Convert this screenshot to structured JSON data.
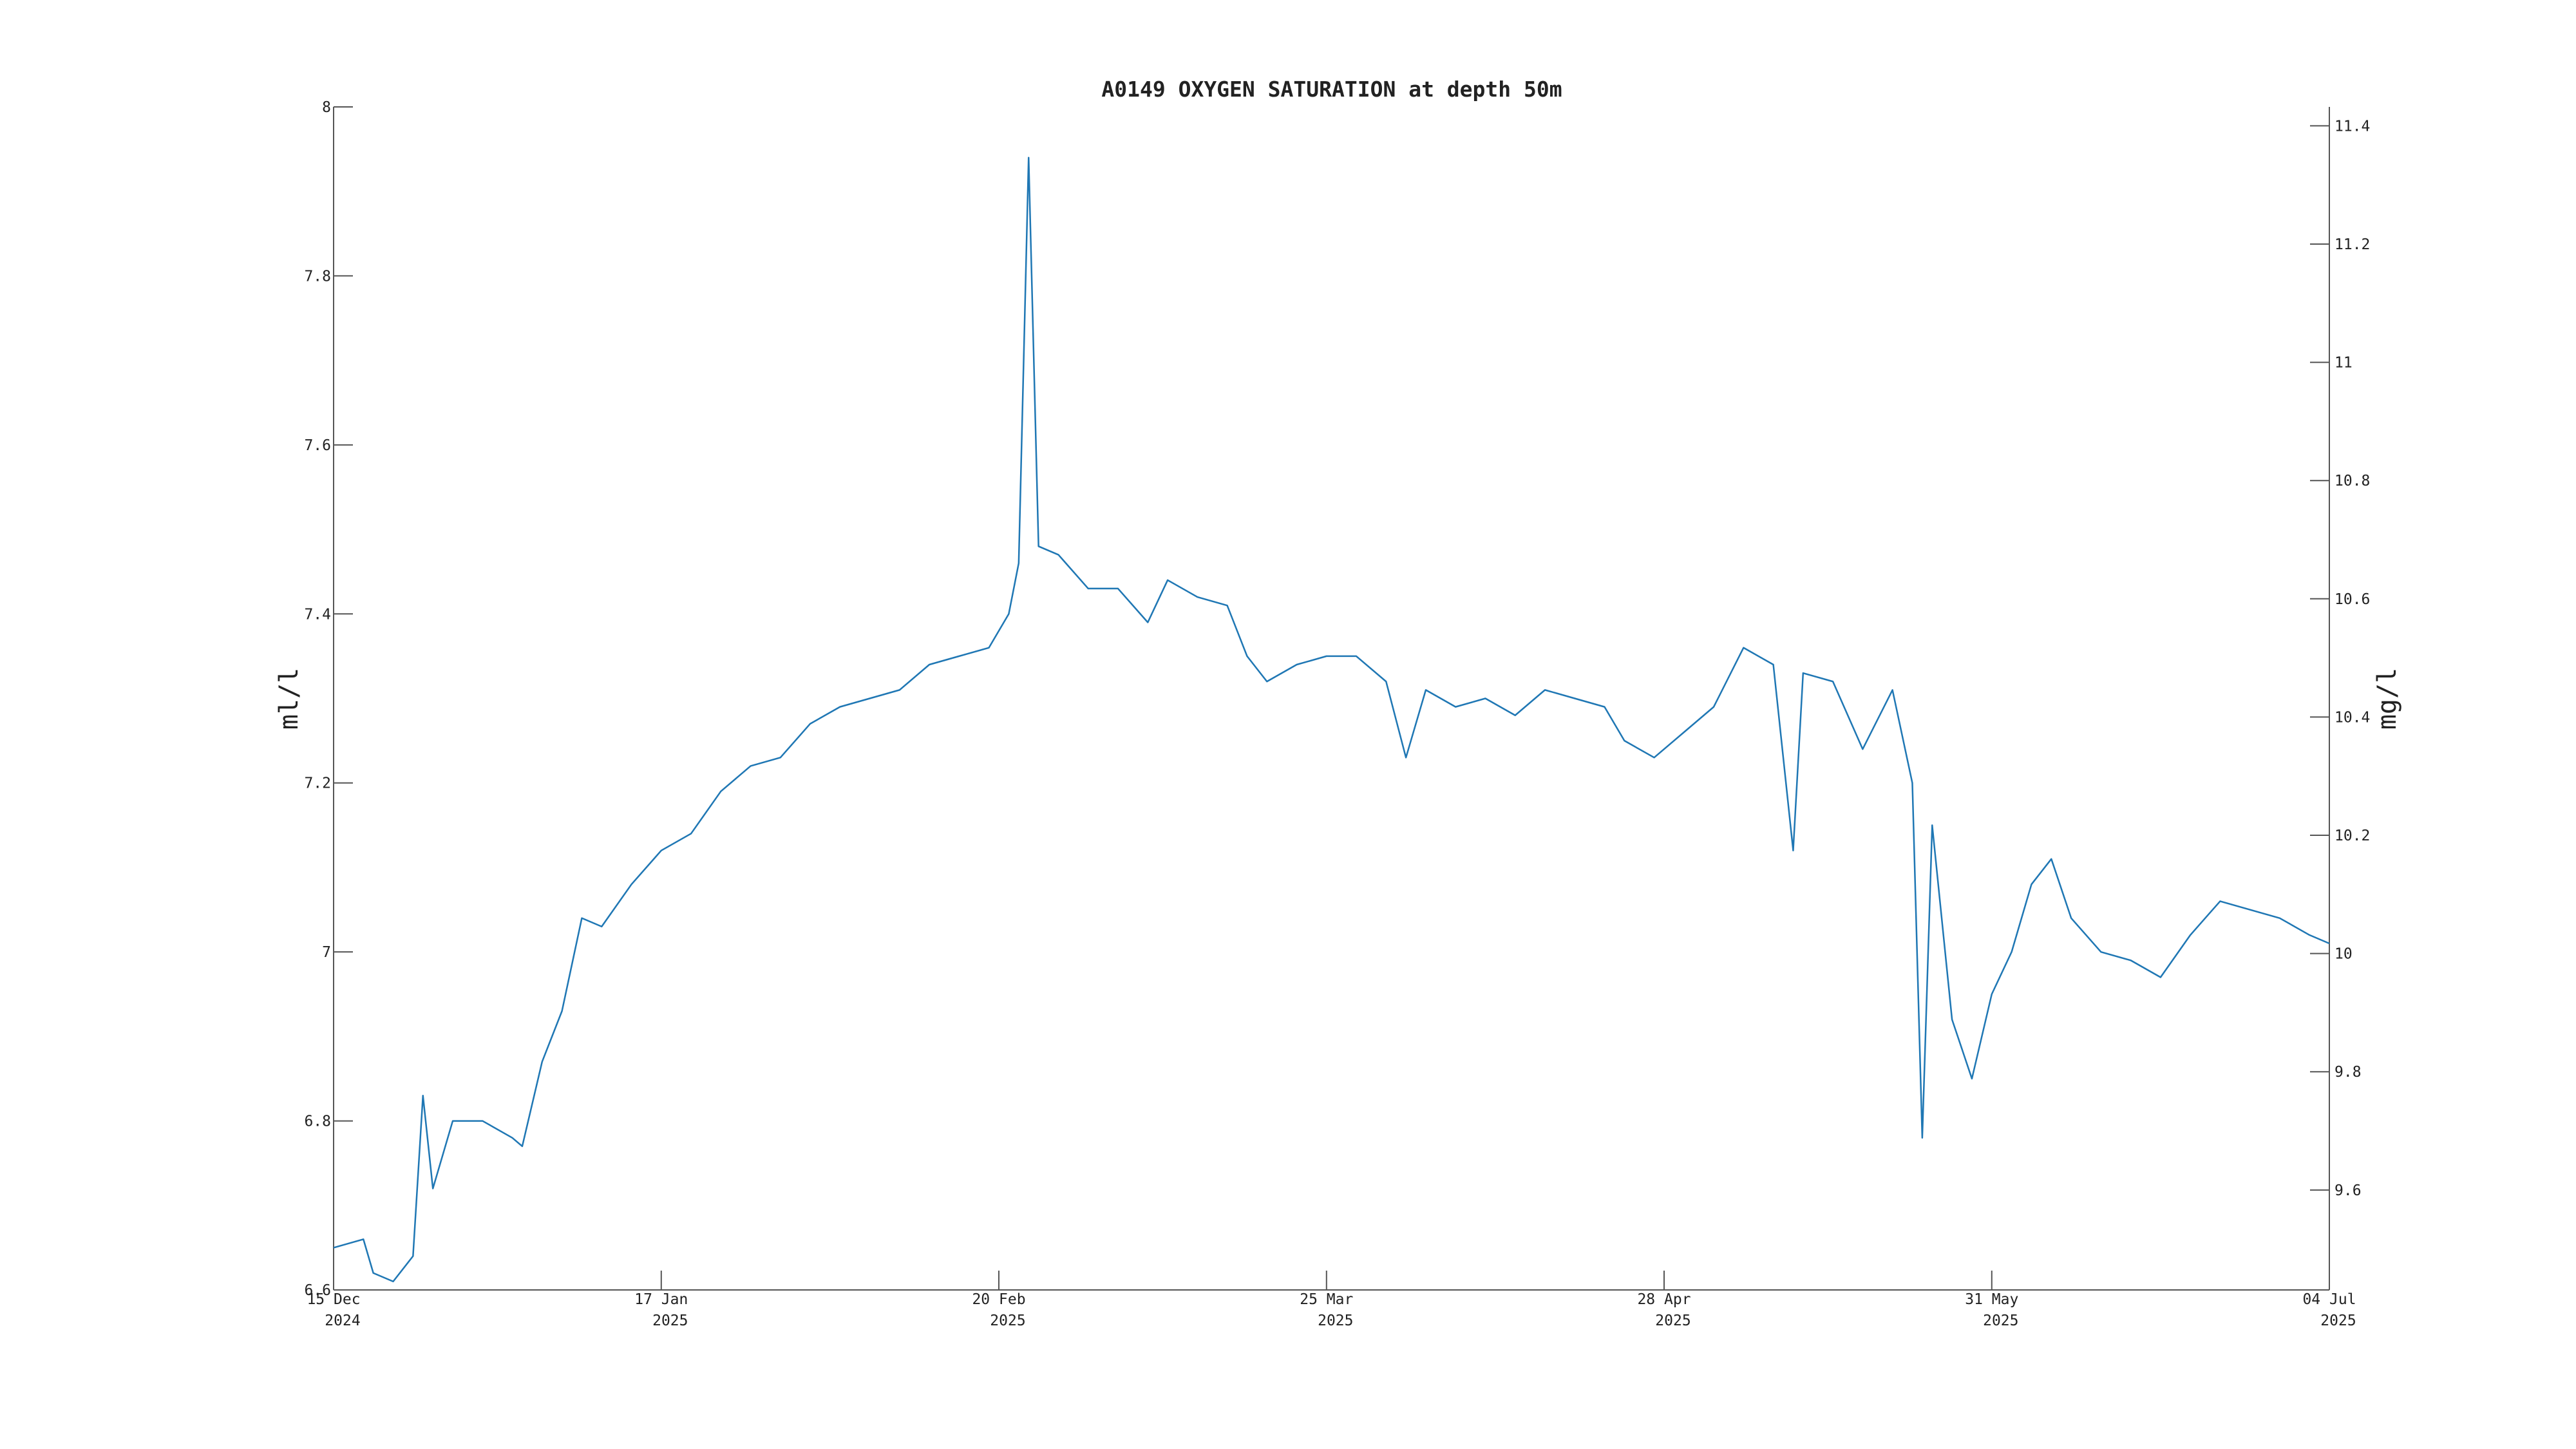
{
  "chart_data": {
    "type": "line",
    "title": "A0149 OXYGEN SATURATION at depth 50m",
    "y_label": "ml/l",
    "y2_label": "mg/l",
    "xlim": [
      "2024-12-15",
      "2025-07-04"
    ],
    "xticks": [
      {
        "value": "2024-12-15",
        "label": [
          "15 Dec",
          "2024"
        ]
      },
      {
        "value": "2025-01-17",
        "label": [
          "17 Jan",
          "2025"
        ]
      },
      {
        "value": "2025-02-20",
        "label": [
          "20 Feb",
          "2025"
        ]
      },
      {
        "value": "2025-03-25",
        "label": [
          "25 Mar",
          "2025"
        ]
      },
      {
        "value": "2025-04-28",
        "label": [
          "28 Apr",
          "2025"
        ]
      },
      {
        "value": "2025-05-31",
        "label": [
          "31 May",
          "2025"
        ]
      },
      {
        "value": "2025-07-04",
        "label": [
          "04 Jul",
          "2025"
        ]
      }
    ],
    "ylim": [
      6.6,
      8
    ],
    "yticks": [
      6.6,
      6.8,
      7,
      7.2,
      7.4,
      7.6,
      7.8,
      8
    ],
    "y2lim": [
      9.431,
      11.432
    ],
    "y2ticks": [
      9.6,
      9.8,
      10,
      10.2,
      10.4,
      10.6,
      10.8,
      11,
      11.2,
      11.4
    ],
    "x": [
      "2024-12-15",
      "2024-12-18",
      "2024-12-19",
      "2024-12-21",
      "2024-12-23",
      "2024-12-24",
      "2024-12-25",
      "2024-12-27",
      "2024-12-30",
      "2025-01-02",
      "2025-01-03",
      "2025-01-05",
      "2025-01-07",
      "2025-01-09",
      "2025-01-11",
      "2025-01-14",
      "2025-01-17",
      "2025-01-20",
      "2025-01-23",
      "2025-01-26",
      "2025-01-29",
      "2025-02-01",
      "2025-02-04",
      "2025-02-07",
      "2025-02-10",
      "2025-02-13",
      "2025-02-16",
      "2025-02-19",
      "2025-02-21",
      "2025-02-22",
      "2025-02-23",
      "2025-02-24",
      "2025-02-26",
      "2025-03-01",
      "2025-03-04",
      "2025-03-07",
      "2025-03-09",
      "2025-03-12",
      "2025-03-15",
      "2025-03-17",
      "2025-03-19",
      "2025-03-22",
      "2025-03-25",
      "2025-03-28",
      "2025-03-31",
      "2025-04-02",
      "2025-04-04",
      "2025-04-07",
      "2025-04-10",
      "2025-04-13",
      "2025-04-16",
      "2025-04-19",
      "2025-04-22",
      "2025-04-24",
      "2025-04-27",
      "2025-04-30",
      "2025-05-03",
      "2025-05-06",
      "2025-05-09",
      "2025-05-11",
      "2025-05-12",
      "2025-05-15",
      "2025-05-18",
      "2025-05-21",
      "2025-05-23",
      "2025-05-24",
      "2025-05-25",
      "2025-05-27",
      "2025-05-29",
      "2025-05-31",
      "2025-06-02",
      "2025-06-04",
      "2025-06-06",
      "2025-06-08",
      "2025-06-11",
      "2025-06-14",
      "2025-06-17",
      "2025-06-20",
      "2025-06-23",
      "2025-06-26",
      "2025-06-29",
      "2025-07-02",
      "2025-07-04"
    ],
    "series": [
      {
        "color": "#1f77b4",
        "values": [
          6.65,
          6.66,
          6.62,
          6.61,
          6.64,
          6.83,
          6.72,
          6.8,
          6.8,
          6.78,
          6.77,
          6.87,
          6.93,
          7.04,
          7.03,
          7.08,
          7.12,
          7.14,
          7.19,
          7.22,
          7.23,
          7.27,
          7.29,
          7.3,
          7.31,
          7.34,
          7.35,
          7.36,
          7.4,
          7.46,
          7.94,
          7.48,
          7.47,
          7.43,
          7.43,
          7.39,
          7.44,
          7.42,
          7.41,
          7.35,
          7.32,
          7.34,
          7.35,
          7.35,
          7.32,
          7.23,
          7.31,
          7.29,
          7.3,
          7.28,
          7.31,
          7.3,
          7.29,
          7.25,
          7.23,
          7.26,
          7.29,
          7.36,
          7.34,
          7.12,
          7.33,
          7.32,
          7.24,
          7.31,
          7.2,
          6.78,
          7.15,
          6.92,
          6.85,
          6.95,
          7.0,
          7.08,
          7.11,
          7.04,
          7.0,
          6.99,
          6.97,
          7.02,
          7.06,
          7.05,
          7.04,
          7.02,
          7.01
        ]
      }
    ]
  }
}
